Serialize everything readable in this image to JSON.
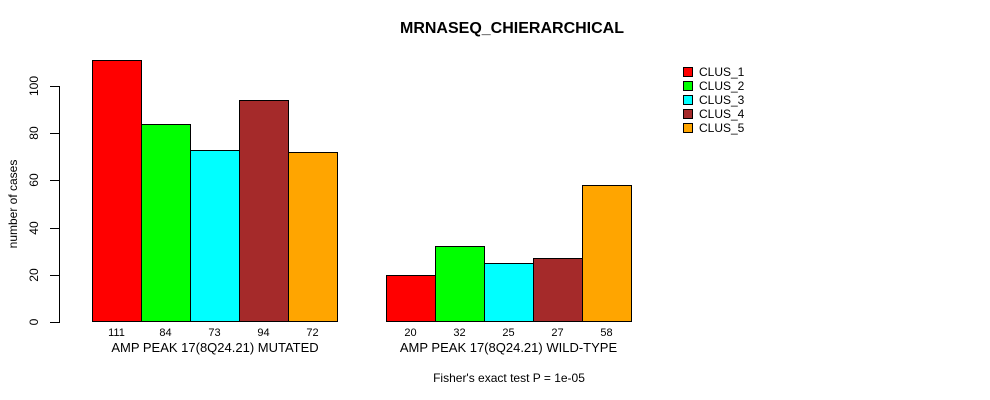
{
  "chart_data": {
    "type": "bar",
    "title": "MRNASEQ_CHIERARCHICAL",
    "ylabel": "number of cases",
    "xlabel": "",
    "categories": [
      "AMP PEAK 17(8Q24.21) MUTATED",
      "AMP PEAK 17(8Q24.21) WILD-TYPE"
    ],
    "series": [
      {
        "name": "CLUS_1",
        "color": "#ff0000",
        "values": [
          111,
          20
        ]
      },
      {
        "name": "CLUS_2",
        "color": "#00ff00",
        "values": [
          84,
          32
        ]
      },
      {
        "name": "CLUS_3",
        "color": "#00ffff",
        "values": [
          73,
          25
        ]
      },
      {
        "name": "CLUS_4",
        "color": "#a52a2a",
        "values": [
          94,
          27
        ]
      },
      {
        "name": "CLUS_5",
        "color": "#ffa500",
        "values": [
          72,
          58
        ]
      }
    ],
    "yticks": [
      0,
      20,
      40,
      60,
      80,
      100
    ],
    "ylim": [
      0,
      111
    ],
    "grid": false,
    "bar_value_labels": true,
    "legend_position": "right",
    "annotation": "Fisher's exact test P = 1e-05"
  }
}
